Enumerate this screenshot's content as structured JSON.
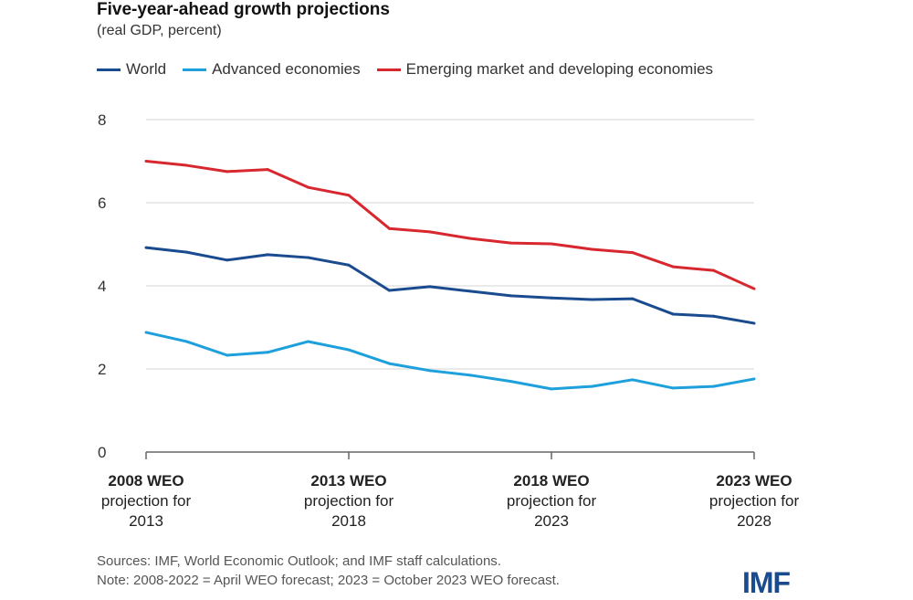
{
  "chart_data": {
    "type": "line",
    "title": "Five-year-ahead growth projections",
    "subtitle": "(real GDP, percent)",
    "x": [
      2008,
      2009,
      2010,
      2011,
      2012,
      2013,
      2014,
      2015,
      2016,
      2017,
      2018,
      2019,
      2020,
      2021,
      2022,
      2023
    ],
    "x_tick_labels": [
      {
        "x": 2008,
        "bold": "2008 WEO",
        "line2": "projection for",
        "line3": "2013"
      },
      {
        "x": 2013,
        "bold": "2013 WEO",
        "line2": "projection for",
        "line3": "2018"
      },
      {
        "x": 2018,
        "bold": "2018 WEO",
        "line2": "projection for",
        "line3": "2023"
      },
      {
        "x": 2023,
        "bold": "2023 WEO",
        "line2": "projection for",
        "line3": "2028"
      }
    ],
    "ylim": [
      0,
      8
    ],
    "yticks": [
      "0",
      "2",
      "4",
      "6",
      "8"
    ],
    "grid": true,
    "legend_position": "top",
    "series": [
      {
        "name": "World",
        "color": "#1a4b8f",
        "values": [
          4.92,
          4.81,
          4.62,
          4.75,
          4.68,
          4.5,
          3.89,
          3.98,
          3.87,
          3.76,
          3.71,
          3.67,
          3.69,
          3.32,
          3.27,
          3.1
        ]
      },
      {
        "name": "Advanced economies",
        "color": "#1ea0dc",
        "values": [
          2.88,
          2.66,
          2.33,
          2.4,
          2.66,
          2.46,
          2.13,
          1.96,
          1.85,
          1.7,
          1.52,
          1.58,
          1.74,
          1.54,
          1.58,
          1.76
        ]
      },
      {
        "name": "Emerging market and developing economies",
        "color": "#d7282f",
        "values": [
          7.0,
          6.9,
          6.75,
          6.8,
          6.37,
          6.18,
          5.38,
          5.3,
          5.14,
          5.03,
          5.01,
          4.88,
          4.8,
          4.46,
          4.37,
          3.93
        ]
      }
    ]
  },
  "footer": {
    "sources": "Sources: IMF, World Economic Outlook; and IMF staff calculations.",
    "note": "Note: 2008-2022 = April WEO forecast; 2023 = October 2023 WEO forecast."
  },
  "logo": "IMF"
}
